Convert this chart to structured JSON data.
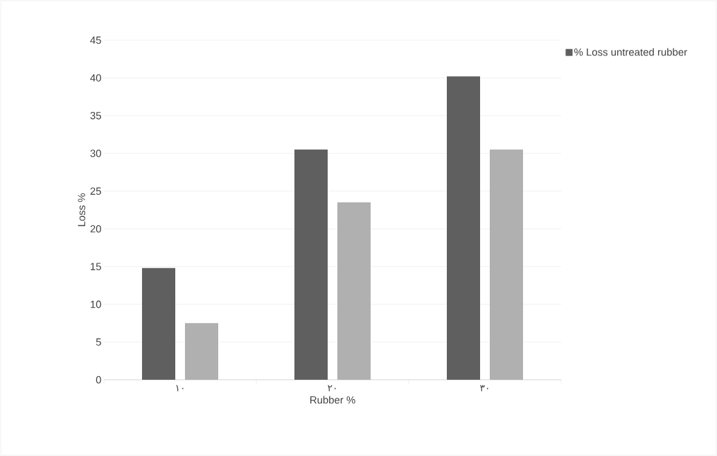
{
  "chart_data": {
    "type": "bar",
    "categories": [
      "١٠",
      "٢٠",
      "٣٠"
    ],
    "series": [
      {
        "name": "% Loss untreated rubber",
        "color": "#5f5f5f",
        "values": [
          14.8,
          30.5,
          40.2
        ]
      },
      {
        "color": "#b0b0b0",
        "values": [
          7.5,
          23.5,
          30.5
        ]
      }
    ],
    "xlabel": "Rubber %",
    "ylabel": "Loss %",
    "ylim": [
      0,
      45
    ],
    "yticks": [
      0,
      5,
      10,
      15,
      20,
      25,
      30,
      35,
      40,
      45
    ],
    "grid": "y",
    "legend": "top right"
  }
}
